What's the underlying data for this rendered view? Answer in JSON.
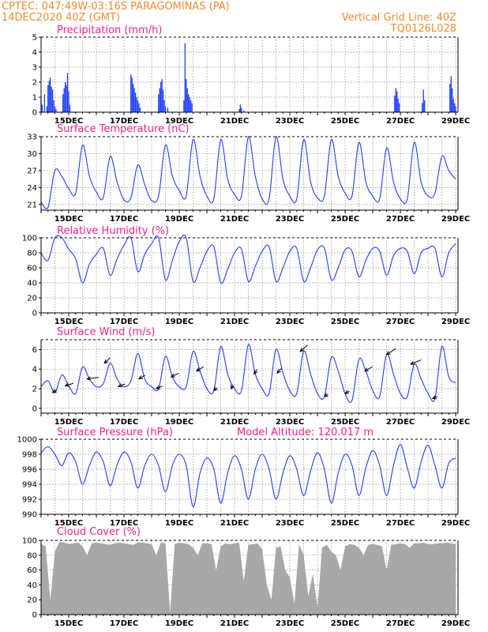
{
  "header": {
    "left_line1": "CPTEC:   047:49W-03:16S  PARAGOMINAS (PA)",
    "left_line2": "14DEC2020 40Z (GMT)",
    "right_line1": "Vertical Grid Line: 40Z",
    "right_line2": "TQ0126L028"
  },
  "colors": {
    "header": "#f08a30",
    "title": "#ff1f8e",
    "line": "#1f3fff",
    "cloud": "#a8a8a8",
    "wind_arrow": "#000000"
  },
  "x_axis": {
    "labels": [
      "15DEC",
      "17DEC",
      "19DEC",
      "21DEC",
      "23DEC",
      "25DEC",
      "27DEC",
      "29DEC"
    ],
    "range_hours": [
      0,
      362
    ]
  },
  "chart_data": [
    {
      "id": "precip",
      "type": "bar",
      "title": "Precipitation (mm/h)",
      "ylim": [
        0,
        5
      ],
      "yticks": [
        0,
        1,
        2,
        3,
        4,
        5
      ],
      "x_hours": [
        0,
        1,
        3,
        5,
        6,
        7,
        8,
        9,
        10,
        11,
        12,
        13,
        19,
        20,
        21,
        22,
        23,
        24,
        25,
        78,
        79,
        80,
        81,
        82,
        83,
        84,
        85,
        86,
        102,
        103,
        104,
        105,
        106,
        107,
        108,
        110,
        124,
        125,
        126,
        127,
        128,
        129,
        130,
        131,
        172,
        173,
        174,
        176,
        307,
        308,
        309,
        310,
        311,
        331,
        332,
        333,
        355,
        356,
        357,
        358,
        359,
        360
      ],
      "values": [
        0.9,
        0.5,
        1.2,
        0.4,
        1.8,
        2.1,
        2.3,
        1.7,
        1.5,
        0.8,
        0.4,
        0.2,
        1.2,
        1.6,
        2.0,
        1.8,
        2.6,
        1.4,
        0.5,
        2.5,
        2.3,
        1.9,
        1.6,
        1.3,
        1.0,
        0.8,
        0.6,
        0.3,
        1.2,
        1.6,
        2.0,
        2.2,
        1.5,
        0.8,
        0.4,
        0.3,
        0.8,
        4.6,
        2.2,
        1.6,
        1.2,
        1.0,
        0.8,
        0.6,
        0.2,
        0.5,
        0.3,
        0.1,
        1.1,
        1.6,
        1.4,
        0.9,
        0.6,
        0.6,
        1.5,
        0.8,
        1.9,
        2.4,
        1.6,
        0.9,
        0.6,
        0.4
      ]
    },
    {
      "id": "temp",
      "type": "line",
      "title": "Surface Temperature (nC)",
      "ylim": [
        20,
        33
      ],
      "yticks": [
        21,
        24,
        27,
        30,
        33
      ],
      "x_hours": [
        0,
        6,
        12,
        18,
        24,
        30,
        36,
        42,
        48,
        54,
        60,
        66,
        72,
        78,
        84,
        90,
        96,
        102,
        108,
        114,
        120,
        126,
        132,
        138,
        144,
        150,
        156,
        162,
        168,
        174,
        180,
        186,
        192,
        198,
        204,
        210,
        216,
        222,
        228,
        234,
        240,
        246,
        252,
        258,
        264,
        270,
        276,
        282,
        288,
        294,
        300,
        306,
        312,
        318,
        324,
        330,
        336,
        342,
        348,
        354,
        360
      ],
      "values": [
        21.5,
        20.5,
        27,
        26,
        23.8,
        23,
        31.5,
        26,
        23.2,
        22.2,
        29.5,
        25,
        21.8,
        22.2,
        28,
        24.5,
        21.7,
        22.5,
        31.5,
        26,
        23.5,
        22.5,
        32.5,
        26,
        22.5,
        22,
        32.5,
        25.5,
        22.8,
        22.5,
        33,
        26,
        22,
        22,
        33,
        25.5,
        22.5,
        22,
        32.5,
        25,
        22.2,
        22.5,
        32.5,
        26,
        23,
        22.5,
        32,
        25,
        22.5,
        22,
        31,
        25,
        22,
        22,
        32,
        25,
        22.5,
        23,
        29.5,
        27,
        25.5
      ]
    },
    {
      "id": "rh",
      "type": "line",
      "title": "Relative Humidity (%)",
      "ylim": [
        0,
        100
      ],
      "yticks": [
        0,
        20,
        40,
        60,
        80,
        100
      ],
      "x_hours": [
        0,
        6,
        12,
        18,
        24,
        30,
        36,
        42,
        48,
        54,
        60,
        66,
        72,
        78,
        84,
        90,
        96,
        102,
        108,
        114,
        120,
        126,
        132,
        138,
        144,
        150,
        156,
        162,
        168,
        174,
        180,
        186,
        192,
        198,
        204,
        210,
        216,
        222,
        228,
        234,
        240,
        246,
        252,
        258,
        264,
        270,
        276,
        282,
        288,
        294,
        300,
        306,
        312,
        318,
        324,
        330,
        336,
        342,
        348,
        354,
        360
      ],
      "values": [
        80,
        70,
        100,
        100,
        85,
        72,
        40,
        65,
        78,
        86,
        50,
        72,
        90,
        100,
        55,
        78,
        92,
        100,
        44,
        70,
        95,
        100,
        42,
        60,
        82,
        88,
        40,
        58,
        80,
        85,
        42,
        62,
        82,
        88,
        42,
        60,
        82,
        86,
        42,
        60,
        84,
        86,
        44,
        60,
        84,
        82,
        48,
        70,
        86,
        82,
        50,
        76,
        86,
        82,
        52,
        80,
        86,
        86,
        48,
        80,
        92
      ]
    },
    {
      "id": "wind",
      "type": "line",
      "title": "Surface Wind (m/s)",
      "ylim": [
        -0.5,
        7
      ],
      "yticks": [
        0,
        2,
        4,
        6
      ],
      "x_hours": [
        0,
        6,
        12,
        18,
        24,
        30,
        36,
        42,
        48,
        54,
        60,
        66,
        72,
        78,
        84,
        90,
        96,
        102,
        108,
        114,
        120,
        126,
        132,
        138,
        144,
        150,
        156,
        162,
        168,
        174,
        180,
        186,
        192,
        198,
        204,
        210,
        216,
        222,
        228,
        234,
        240,
        246,
        252,
        258,
        264,
        270,
        276,
        282,
        288,
        294,
        300,
        306,
        312,
        318,
        324,
        330,
        336,
        342,
        348,
        354,
        360
      ],
      "values": [
        2.2,
        2.8,
        1.6,
        3.4,
        2.3,
        1.5,
        4.2,
        3.0,
        2.2,
        2.5,
        4.6,
        3.0,
        2.2,
        2.8,
        5.6,
        3.0,
        2.2,
        2.0,
        5.3,
        3.2,
        2.2,
        2.2,
        5.8,
        3.8,
        2.0,
        1.8,
        6.3,
        3.5,
        2.0,
        1.8,
        6.5,
        3.5,
        2.0,
        1.5,
        6.0,
        3.6,
        1.8,
        1.5,
        5.8,
        3.5,
        1.5,
        1.2,
        5.2,
        3.8,
        1.5,
        0.8,
        5.0,
        3.8,
        1.8,
        1.2,
        5.5,
        3.5,
        1.5,
        1.2,
        4.5,
        3.0,
        1.5,
        1.0,
        6.3,
        3.2,
        2.6
      ],
      "arrows": [
        {
          "x_hours": 10,
          "dir_deg": 60
        },
        {
          "x_hours": 21,
          "dir_deg": 40
        },
        {
          "x_hours": 40,
          "dir_deg": 20
        },
        {
          "x_hours": 55,
          "dir_deg": 70
        },
        {
          "x_hours": 67,
          "dir_deg": 50
        },
        {
          "x_hours": 85,
          "dir_deg": 60
        },
        {
          "x_hours": 100,
          "dir_deg": 50
        },
        {
          "x_hours": 113,
          "dir_deg": 55
        },
        {
          "x_hours": 135,
          "dir_deg": 60
        },
        {
          "x_hours": 150,
          "dir_deg": 70
        },
        {
          "x_hours": 165,
          "dir_deg": 80
        },
        {
          "x_hours": 185,
          "dir_deg": 78
        },
        {
          "x_hours": 205,
          "dir_deg": 72
        },
        {
          "x_hours": 225,
          "dir_deg": 68
        },
        {
          "x_hours": 246,
          "dir_deg": 62
        },
        {
          "x_hours": 264,
          "dir_deg": 60
        },
        {
          "x_hours": 281,
          "dir_deg": 58
        },
        {
          "x_hours": 300,
          "dir_deg": 60
        },
        {
          "x_hours": 321,
          "dir_deg": 50
        },
        {
          "x_hours": 340,
          "dir_deg": 48
        }
      ]
    },
    {
      "id": "pressure",
      "type": "line",
      "title": "Surface Pressure (hPa)",
      "annotation": "Model Altitude: 120.017 m",
      "ylim": [
        990,
        1000
      ],
      "yticks": [
        990,
        992,
        994,
        996,
        998,
        1000
      ],
      "x_hours": [
        0,
        6,
        12,
        18,
        24,
        30,
        36,
        42,
        48,
        54,
        60,
        66,
        72,
        78,
        84,
        90,
        96,
        102,
        108,
        114,
        120,
        126,
        132,
        138,
        144,
        150,
        156,
        162,
        168,
        174,
        180,
        186,
        192,
        198,
        204,
        210,
        216,
        222,
        228,
        234,
        240,
        246,
        252,
        258,
        264,
        270,
        276,
        282,
        288,
        294,
        300,
        306,
        312,
        318,
        324,
        330,
        336,
        342,
        348,
        354,
        360
      ],
      "values": [
        998.2,
        999.0,
        998.0,
        996.5,
        998.2,
        997.0,
        994.0,
        996.5,
        998.3,
        997.0,
        993.8,
        996.6,
        998.3,
        997.0,
        993.5,
        996.5,
        998.0,
        996.5,
        993.0,
        996.5,
        998.0,
        996.5,
        991.0,
        995.5,
        997.5,
        996.0,
        991.5,
        995.5,
        997.8,
        996.0,
        992.0,
        996.0,
        998.0,
        996.0,
        992.0,
        995.5,
        997.8,
        996.0,
        992.5,
        995.8,
        998.2,
        996.0,
        991.5,
        995.5,
        998.0,
        996.5,
        992.5,
        996.2,
        998.5,
        996.5,
        992.5,
        996.5,
        999.3,
        996.2,
        993.5,
        997.0,
        999.2,
        996.5,
        993.5,
        996.8,
        997.5
      ]
    },
    {
      "id": "cloud",
      "type": "area",
      "title": "Cloud Cover (%)",
      "ylim": [
        0,
        100
      ],
      "yticks": [
        0,
        20,
        40,
        60,
        80,
        100
      ],
      "x_hours": [
        0,
        4,
        8,
        12,
        16,
        20,
        24,
        28,
        32,
        36,
        40,
        44,
        48,
        52,
        56,
        60,
        64,
        68,
        72,
        76,
        80,
        84,
        88,
        92,
        96,
        100,
        104,
        108,
        112,
        116,
        120,
        124,
        128,
        132,
        136,
        140,
        144,
        148,
        152,
        156,
        160,
        164,
        168,
        172,
        176,
        180,
        184,
        188,
        192,
        196,
        200,
        204,
        208,
        212,
        216,
        220,
        224,
        228,
        232,
        236,
        240,
        244,
        248,
        252,
        256,
        260,
        264,
        268,
        272,
        276,
        280,
        284,
        288,
        292,
        296,
        300,
        304,
        308,
        312,
        316,
        320,
        324,
        328,
        332,
        336,
        340,
        344,
        348,
        352,
        356,
        360
      ],
      "values": [
        95,
        92,
        20,
        85,
        98,
        97,
        95,
        96,
        97,
        92,
        80,
        96,
        97,
        96,
        95,
        94,
        96,
        97,
        96,
        95,
        94,
        97,
        97,
        96,
        95,
        80,
        97,
        96,
        3,
        95,
        97,
        96,
        95,
        90,
        80,
        96,
        96,
        95,
        60,
        92,
        96,
        95,
        96,
        97,
        45,
        94,
        95,
        96,
        88,
        40,
        20,
        90,
        92,
        60,
        50,
        15,
        95,
        80,
        25,
        55,
        10,
        90,
        94,
        85,
        80,
        60,
        92,
        95,
        94,
        90,
        80,
        94,
        95,
        94,
        92,
        60,
        94,
        95,
        96,
        95,
        90,
        96,
        96,
        97,
        95,
        95,
        96,
        96,
        97,
        96,
        95
      ]
    }
  ]
}
